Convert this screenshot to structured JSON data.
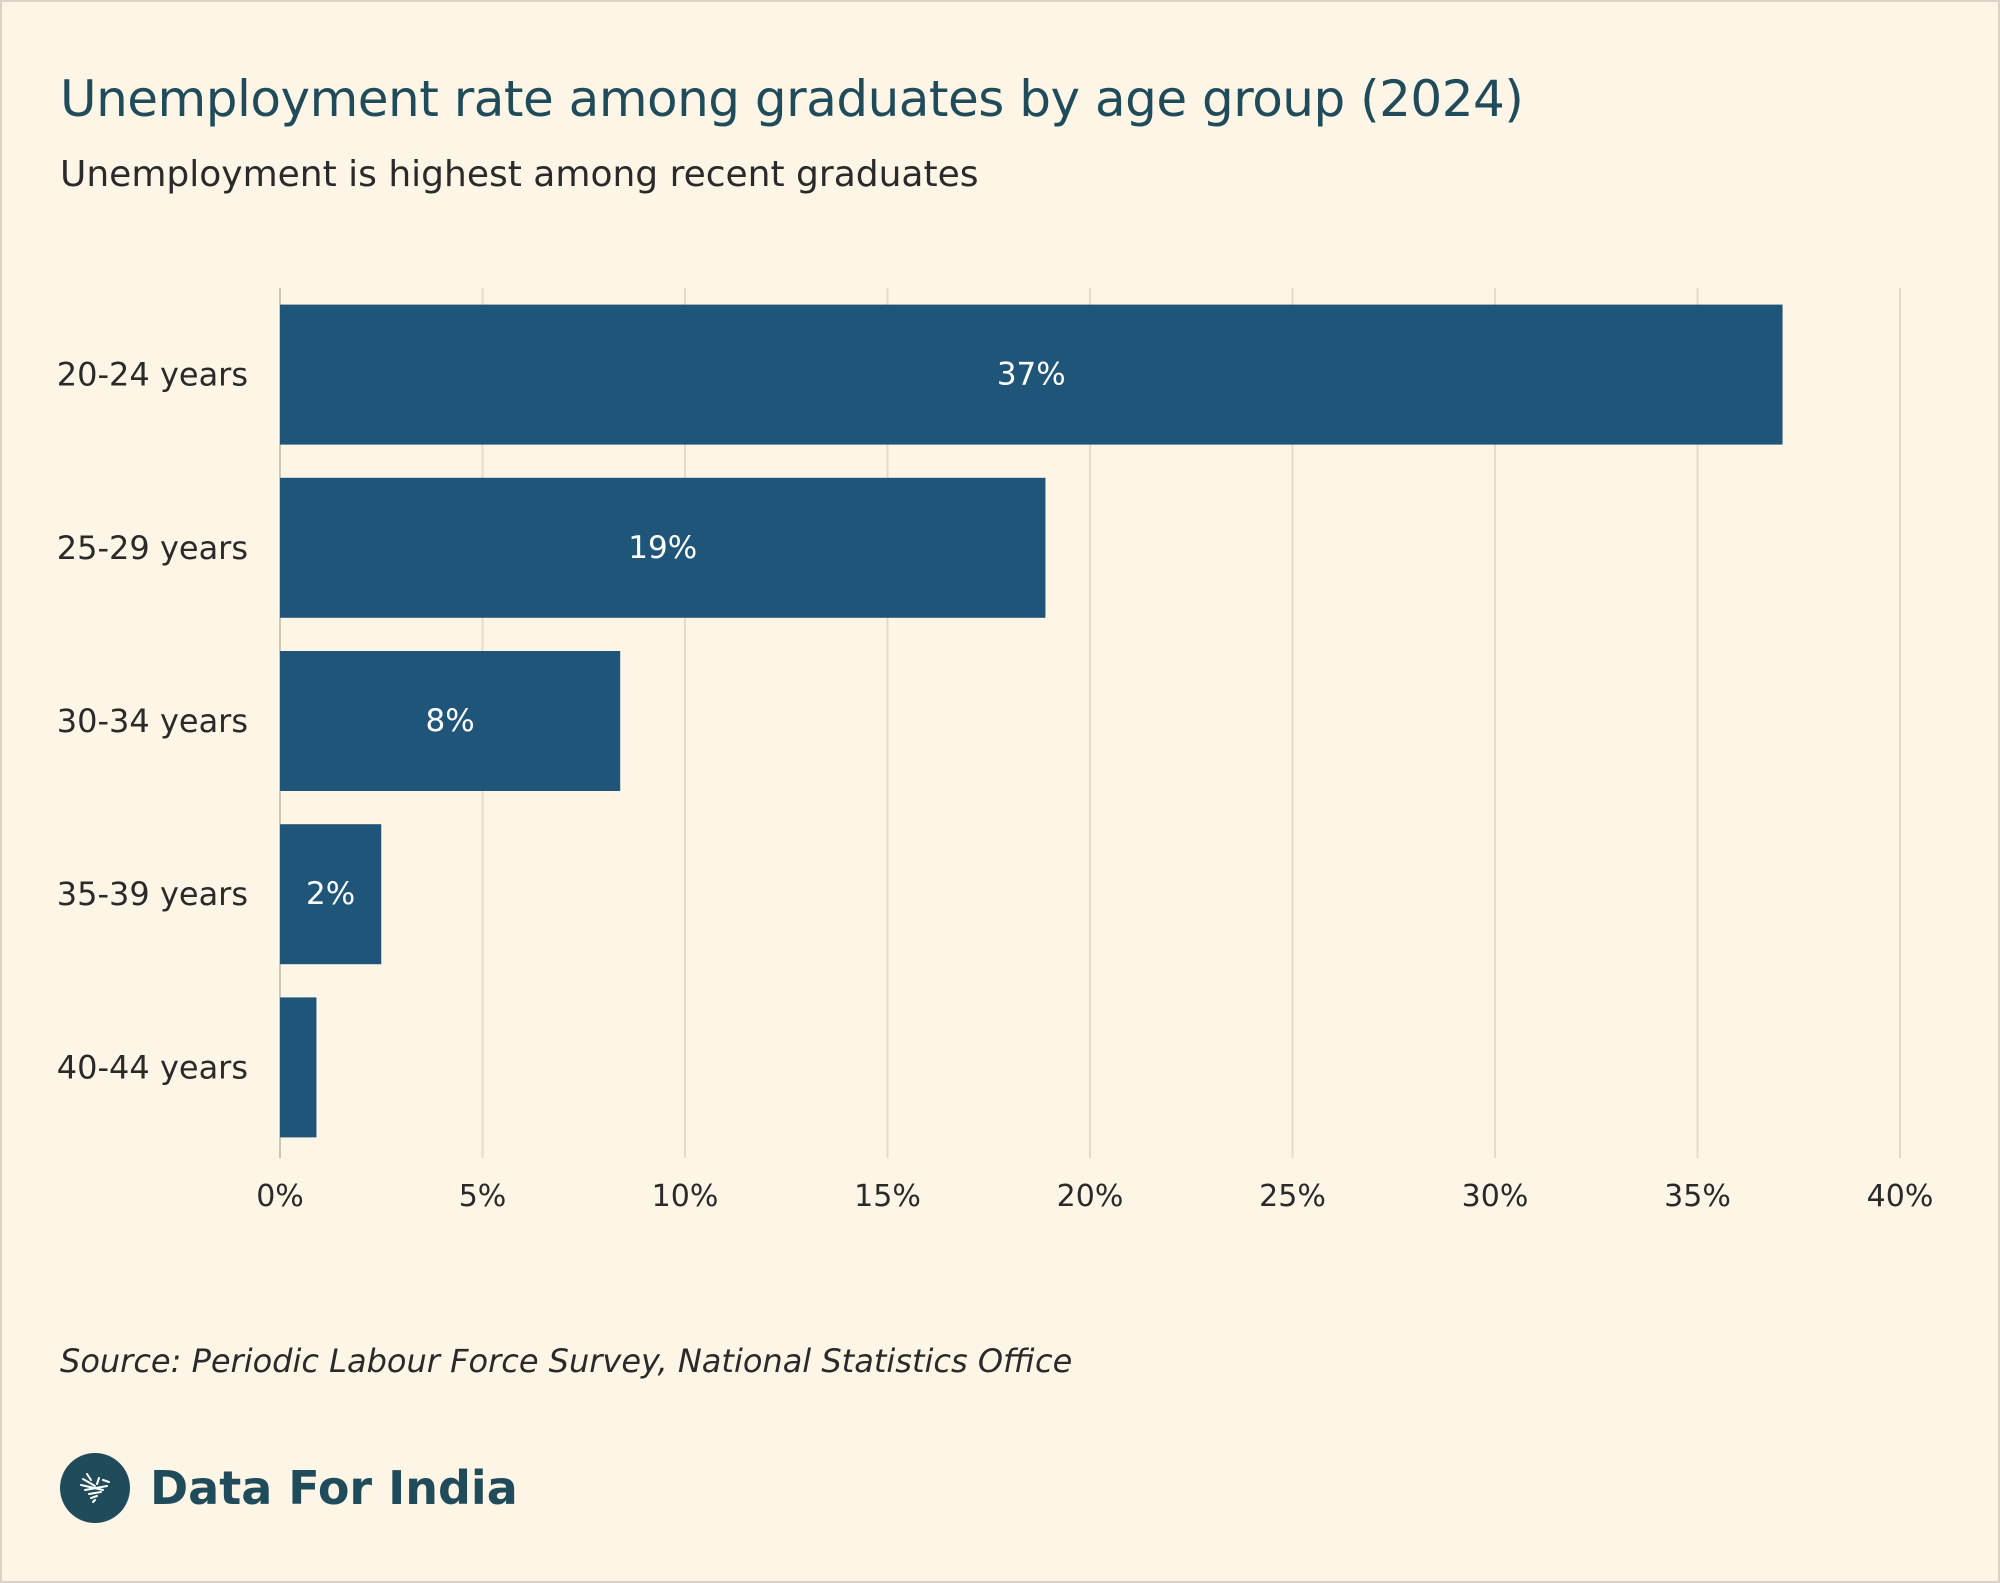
{
  "header": {
    "title": "Unemployment rate among graduates by age group (2024)",
    "subtitle": "Unemployment is highest among recent graduates"
  },
  "footer": {
    "source": "Source: Periodic Labour Force Survey, National Statistics Office",
    "brand": "Data For India"
  },
  "colors": {
    "bar": "#20557a",
    "background": "#fdf5e6",
    "gridline": "#e3dbcc",
    "title": "#1f4b5a"
  },
  "icons": {
    "brand_logo": "india-map-logo-icon"
  },
  "chart_data": {
    "type": "bar",
    "orientation": "horizontal",
    "title": "Unemployment rate among graduates by age group (2024)",
    "subtitle": "Unemployment is highest among recent graduates",
    "xlabel": "",
    "ylabel": "",
    "categories": [
      "20-24 years",
      "25-29 years",
      "30-34 years",
      "35-39 years",
      "40-44 years"
    ],
    "values": [
      37.1,
      18.9,
      8.4,
      2.5,
      0.9
    ],
    "data_labels": [
      "37%",
      "19%",
      "8%",
      "2%",
      ""
    ],
    "xlim": [
      0,
      40
    ],
    "x_ticks": [
      0,
      5,
      10,
      15,
      20,
      25,
      30,
      35,
      40
    ],
    "x_tick_labels": [
      "0%",
      "5%",
      "10%",
      "15%",
      "20%",
      "25%",
      "30%",
      "35%",
      "40%"
    ],
    "grid": "vertical",
    "legend": "none"
  }
}
